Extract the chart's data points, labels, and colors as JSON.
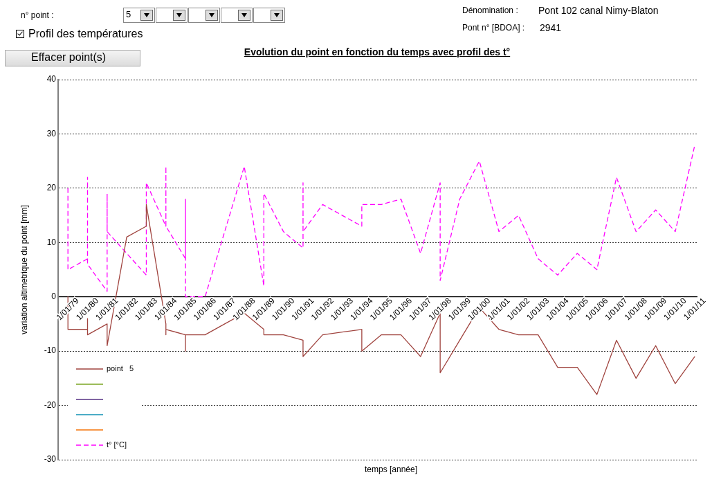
{
  "chart_data": {
    "type": "line",
    "title": "Evolution du point en fonction du temps avec profil des t°",
    "xlabel": "temps [année]",
    "ylabel": "variation altimetrique du point [mm]",
    "annotations": [
      "n° point  :",
      "5",
      "Profil des températures",
      "Effacer point(s)",
      "Dénomination :",
      "Pont  102  canal  Nimy-Blaton",
      "Pont n° [BDOA] :",
      "2941"
    ],
    "xlim": [
      "1978-07-02",
      "2011-02-06"
    ],
    "ylim": [
      -30,
      40
    ],
    "yticks": [
      -30,
      -20,
      -10,
      0,
      10,
      20,
      30,
      40
    ],
    "xticks": [
      {
        "value": "1979-01-01",
        "label": "1/01/79"
      },
      {
        "value": "1980-01-01",
        "label": "1/01/80"
      },
      {
        "value": "1981-01-01",
        "label": "1/01/81"
      },
      {
        "value": "1982-01-01",
        "label": "1/01/82"
      },
      {
        "value": "1983-01-01",
        "label": "1/01/83"
      },
      {
        "value": "1984-01-01",
        "label": "1/01/84"
      },
      {
        "value": "1985-01-01",
        "label": "1/01/85"
      },
      {
        "value": "1986-01-01",
        "label": "1/01/86"
      },
      {
        "value": "1987-01-01",
        "label": "1/01/87"
      },
      {
        "value": "1988-01-01",
        "label": "1/01/88"
      },
      {
        "value": "1989-01-01",
        "label": "1/01/89"
      },
      {
        "value": "1990-01-01",
        "label": "1/01/90"
      },
      {
        "value": "1991-01-01",
        "label": "1/01/91"
      },
      {
        "value": "1992-01-01",
        "label": "1/01/92"
      },
      {
        "value": "1993-01-01",
        "label": "1/01/93"
      },
      {
        "value": "1994-01-01",
        "label": "1/01/94"
      },
      {
        "value": "1995-01-01",
        "label": "1/01/95"
      },
      {
        "value": "1996-01-01",
        "label": "1/01/96"
      },
      {
        "value": "1997-01-01",
        "label": "1/01/97"
      },
      {
        "value": "1998-01-01",
        "label": "1/01/98"
      },
      {
        "value": "1999-01-01",
        "label": "1/01/99"
      },
      {
        "value": "2000-01-01",
        "label": "1/01/00"
      },
      {
        "value": "2001-01-01",
        "label": "1/01/01"
      },
      {
        "value": "2002-01-01",
        "label": "1/01/02"
      },
      {
        "value": "2003-01-01",
        "label": "1/01/03"
      },
      {
        "value": "2004-01-01",
        "label": "1/01/04"
      },
      {
        "value": "2005-01-01",
        "label": "1/01/05"
      },
      {
        "value": "2006-01-01",
        "label": "1/01/06"
      },
      {
        "value": "2007-01-01",
        "label": "1/01/07"
      },
      {
        "value": "2008-01-01",
        "label": "1/01/08"
      },
      {
        "value": "2009-01-01",
        "label": "1/01/09"
      },
      {
        "value": "2010-01-01",
        "label": "1/01/10"
      },
      {
        "value": "2011-01-01",
        "label": "1/01/11"
      }
    ],
    "grid": "y",
    "legend": "bottom left",
    "marker": "none",
    "series": [
      {
        "name": "point   5",
        "color": "#a0443f",
        "line_style": "solid",
        "x": [
          "1979-01-01",
          "1979-01-01",
          "1980-01-01",
          "1980-01-01",
          "1980-01-01",
          "1981-01-01",
          "1981-01-01",
          "1982-01-01",
          "1983-01-01",
          "1983-01-01",
          "1984-01-01",
          "1984-01-01",
          "1984-01-01",
          "1985-01-01",
          "1985-01-01",
          "1985-01-01",
          "1986-01-01",
          "1987-01-01",
          "1988-01-01",
          "1989-01-01",
          "1989-01-01",
          "1990-01-01",
          "1991-01-01",
          "1991-01-01",
          "1992-01-01",
          "1993-01-01",
          "1994-01-01",
          "1994-01-01",
          "1995-01-01",
          "1996-01-01",
          "1997-01-01",
          "1998-01-01",
          "1998-01-01",
          "1999-01-01",
          "2000-01-01",
          "2001-01-01",
          "2002-01-01",
          "2003-01-01",
          "2004-01-01",
          "2005-01-01",
          "2006-01-01",
          "2007-01-01",
          "2008-01-01",
          "2009-01-01",
          "2010-01-01",
          "2011-01-01"
        ],
        "values": [
          0,
          -6,
          -6,
          -4,
          -7,
          -5,
          -9,
          11,
          13,
          17,
          -5,
          -7,
          -6,
          -7,
          -10,
          -7,
          -7,
          -5,
          -3,
          -6,
          -7,
          -7,
          -8,
          -11,
          -7,
          -6.5,
          -6,
          -10,
          -7,
          -7,
          -11,
          -3,
          -14,
          -8,
          -2,
          -6,
          -7,
          -7,
          -13,
          -13,
          -18,
          -8,
          -15,
          -9,
          -16,
          -11
        ]
      },
      {
        "name": "t° [°C]",
        "color": "#ff00ff",
        "line_style": "dashed",
        "x": [
          "1979-01-01",
          "1979-01-01",
          "1980-01-01",
          "1980-01-01",
          "1980-01-01",
          "1981-01-01",
          "1981-01-01",
          "1981-01-01",
          "1982-01-01",
          "1983-01-01",
          "1983-01-01",
          "1984-01-01",
          "1984-01-01",
          "1984-01-01",
          "1985-01-01",
          "1985-01-01",
          "1985-01-01",
          "1986-01-01",
          "1987-01-01",
          "1988-01-01",
          "1989-01-01",
          "1989-01-01",
          "1990-01-01",
          "1991-01-01",
          "1991-01-01",
          "1991-01-01",
          "1992-01-01",
          "1993-01-01",
          "1994-01-01",
          "1994-01-01",
          "1995-01-01",
          "1996-01-01",
          "1997-01-01",
          "1998-01-01",
          "1998-01-01",
          "1999-01-01",
          "2000-01-01",
          "2001-01-01",
          "2002-01-01",
          "2003-01-01",
          "2004-01-01",
          "2005-01-01",
          "2006-01-01",
          "2007-01-01",
          "2008-01-01",
          "2009-01-01",
          "2010-01-01",
          "2011-01-01"
        ],
        "values": [
          20,
          5,
          7,
          22,
          6,
          1,
          19,
          12,
          8,
          4,
          21,
          13,
          24,
          13,
          7,
          18,
          0,
          0,
          12,
          24,
          2,
          19,
          12,
          9,
          21,
          12,
          17,
          15,
          13,
          17,
          17,
          18,
          8,
          21,
          3,
          18,
          25,
          12,
          15,
          7,
          4,
          8,
          5,
          22,
          12,
          16,
          12,
          28
        ]
      }
    ]
  }
}
